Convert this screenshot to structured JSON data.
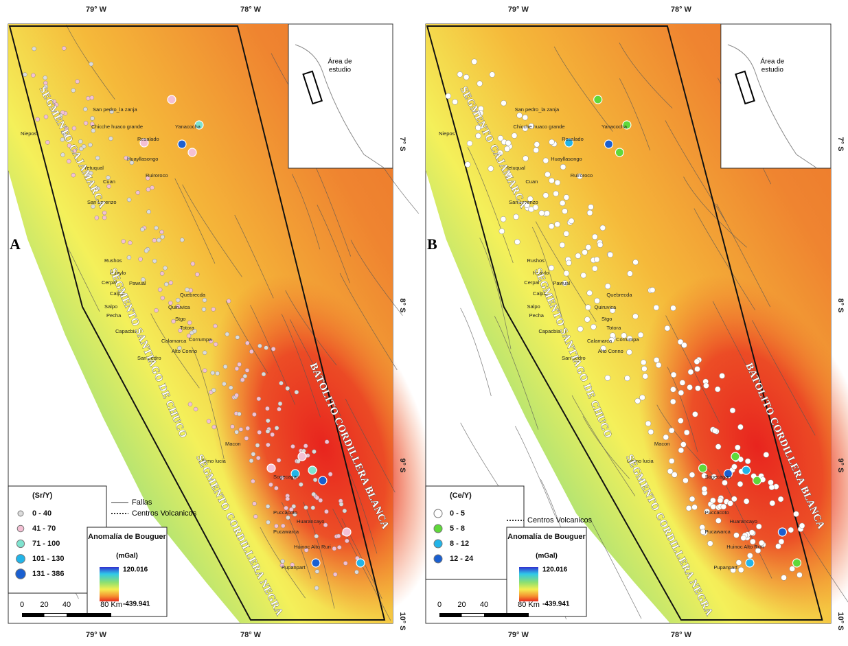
{
  "panels": [
    {
      "label": "A",
      "top_axis": [
        "79° W",
        "78° W"
      ],
      "bottom_axis": [
        "79° W",
        "78° W"
      ],
      "lat_labels": [
        "7° S",
        "8° S",
        "9° S",
        "10° S"
      ],
      "inset_label": [
        "Área de",
        "estudio"
      ],
      "segments": [
        "SEGMENTO CAJAMARCA",
        "SEGMENTO SANTIAGO DE CHUCO",
        "SEGMENTO CORDILLERA NEGRA",
        "BATOLITO CORDILLERA BLANCA"
      ],
      "places": [
        "San pedro_la zanja",
        "Chicche huaco grande",
        "Yanacocha",
        "Niepos",
        "Resalado",
        "Huayllasongo",
        "Yetuqual",
        "Ruiroroco",
        "Cuan",
        "San Lorenzo",
        "Rushos",
        "Huaylo",
        "Cerpal",
        "Pawual",
        "Calpat",
        "Quebrecda",
        "Salpo",
        "Quiruvica",
        "Pecha",
        "Stgo",
        "Totora",
        "Capacbia",
        "Calamarca",
        "Corrumpa",
        "Alto Conno",
        "San pedro",
        "Macon",
        "Ultimo lucia",
        "Sogecagan",
        "Puccacoto",
        "Huarancayo",
        "Pucawarca",
        "Huinoc Alto Ruri",
        "Pupanpart"
      ],
      "legend": {
        "title": "(Sr/Y)",
        "classes": [
          {
            "label": "0 - 40",
            "color": "#dcdcdc"
          },
          {
            "label": "41 - 70",
            "color": "#f4c0d4"
          },
          {
            "label": "71 - 100",
            "color": "#7fe3cf"
          },
          {
            "label": "101 - 130",
            "color": "#22b4e8"
          },
          {
            "label": "131 - 386",
            "color": "#1a5fd0"
          }
        ],
        "lines": [
          "Fallas",
          "Centros Volcanicos"
        ],
        "gradient_title": "Anomalía de Bouguer",
        "gradient_unit": "(mGal)",
        "gradient_max": "120.016",
        "gradient_min": "-439.941"
      },
      "scale": [
        "0",
        "20",
        "40",
        "80 Km"
      ]
    },
    {
      "label": "B",
      "top_axis": [
        "79° W",
        "78° W"
      ],
      "bottom_axis": [
        "79° W",
        "78° W"
      ],
      "lat_labels": [
        "7° S",
        "8° S",
        "9° S",
        "10° S"
      ],
      "inset_label": [
        "Área de",
        "estudio"
      ],
      "segments": [
        "SEGMENTO CAJAMARCA",
        "SEGMENTO SANTIAGO DE CHUCO",
        "SEGMENTO CORDILLERA NEGRA",
        "BATOLITO CORDILLERA BLANCA"
      ],
      "places": [
        "San pedro_la zanja",
        "Chicche huaco grande",
        "Yanacocha",
        "Niepos",
        "Resalado",
        "Huayllasongo",
        "Yetuqual",
        "Ruiroroco",
        "Cuan",
        "San Lorenzo",
        "Rushos",
        "Huaylo",
        "Cerpal",
        "Pawual",
        "Calpat",
        "Quebrecda",
        "Salpo",
        "Quiruvica",
        "Pecha",
        "Stgo",
        "Totora",
        "Capacbia",
        "Calamarca",
        "Corrumpa",
        "Alto Conno",
        "San pedro",
        "Macon",
        "Ultimo lucia",
        "Sogecagan",
        "Puccacoto",
        "Huarancayo",
        "Pucawarca",
        "Huinoc Alto Ruri",
        "Pupanpart"
      ],
      "legend": {
        "title": "(Ce/Y)",
        "classes": [
          {
            "label": "0 - 5",
            "color": "#ffffff"
          },
          {
            "label": "5 - 8",
            "color": "#5fd83a"
          },
          {
            "label": "8 - 12",
            "color": "#22b4e8"
          },
          {
            "label": "12 - 24",
            "color": "#1a5fd0"
          }
        ],
        "lines": [
          "Centros Volcanicos"
        ],
        "gradient_title": "Anomalía de Bouguer",
        "gradient_unit": "(mGal)",
        "gradient_max": "120.016",
        "gradient_min": "-439.941"
      },
      "scale": [
        "0",
        "20",
        "40",
        "80 Km"
      ]
    }
  ]
}
